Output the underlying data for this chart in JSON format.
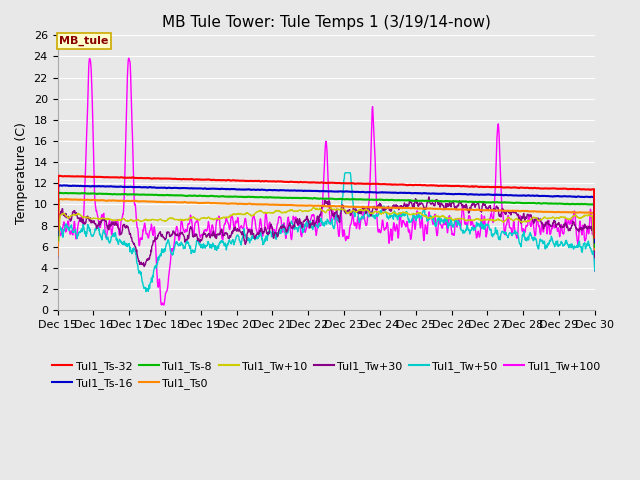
{
  "title": "MB Tule Tower: Tule Temps 1 (3/19/14-now)",
  "ylabel": "Temperature (C)",
  "annotation": "MB_tule",
  "bg_color": "#e8e8e8",
  "plot_bg_color": "#e8e8e8",
  "x_start": 15,
  "x_end": 30,
  "ylim": [
    0,
    26
  ],
  "yticks": [
    0,
    2,
    4,
    6,
    8,
    10,
    12,
    14,
    16,
    18,
    20,
    22,
    24,
    26
  ],
  "xtick_positions": [
    15,
    16,
    17,
    18,
    19,
    20,
    21,
    22,
    23,
    24,
    25,
    26,
    27,
    28,
    29,
    30
  ],
  "xtick_labels": [
    "Dec 15",
    "Dec 16",
    "Dec 17",
    "Dec 18",
    "Dec 19",
    "Dec 20",
    "Dec 21",
    "Dec 22",
    "Dec 23",
    "Dec 24",
    "Dec 25",
    "Dec 26",
    "Dec 27",
    "Dec 28",
    "Dec 29",
    "Dec 30"
  ],
  "grid_color": "#ffffff",
  "title_fontsize": 11,
  "axis_fontsize": 9,
  "tick_fontsize": 8,
  "legend_fontsize": 8,
  "series_meta": [
    {
      "label": "Tul1_Ts-32",
      "color": "#ff0000",
      "lw": 1.5
    },
    {
      "label": "Tul1_Ts-16",
      "color": "#0000cc",
      "lw": 1.5
    },
    {
      "label": "Tul1_Ts-8",
      "color": "#00bb00",
      "lw": 1.5
    },
    {
      "label": "Tul1_Ts0",
      "color": "#ff8800",
      "lw": 1.5
    },
    {
      "label": "Tul1_Tw+10",
      "color": "#cccc00",
      "lw": 1.0
    },
    {
      "label": "Tul1_Tw+30",
      "color": "#880088",
      "lw": 1.0
    },
    {
      "label": "Tul1_Tw+50",
      "color": "#00cccc",
      "lw": 1.0
    },
    {
      "label": "Tul1_Tw+100",
      "color": "#ff00ff",
      "lw": 1.0
    }
  ]
}
